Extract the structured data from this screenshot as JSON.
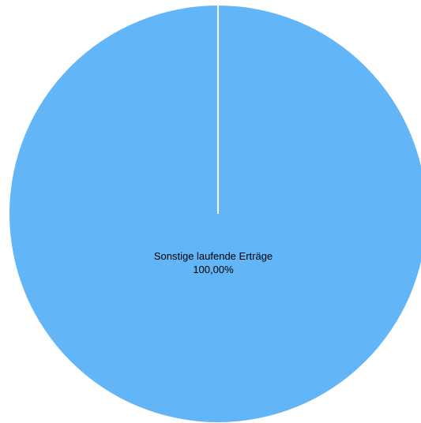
{
  "chart_data": {
    "type": "pie",
    "slices": [
      {
        "label": "Sonstige laufende Erträge",
        "value_label": "100,00%",
        "value": 100.0,
        "color": "#62b5f6"
      }
    ],
    "start_angle_deg": 0,
    "separator_color": "#ffffff"
  }
}
